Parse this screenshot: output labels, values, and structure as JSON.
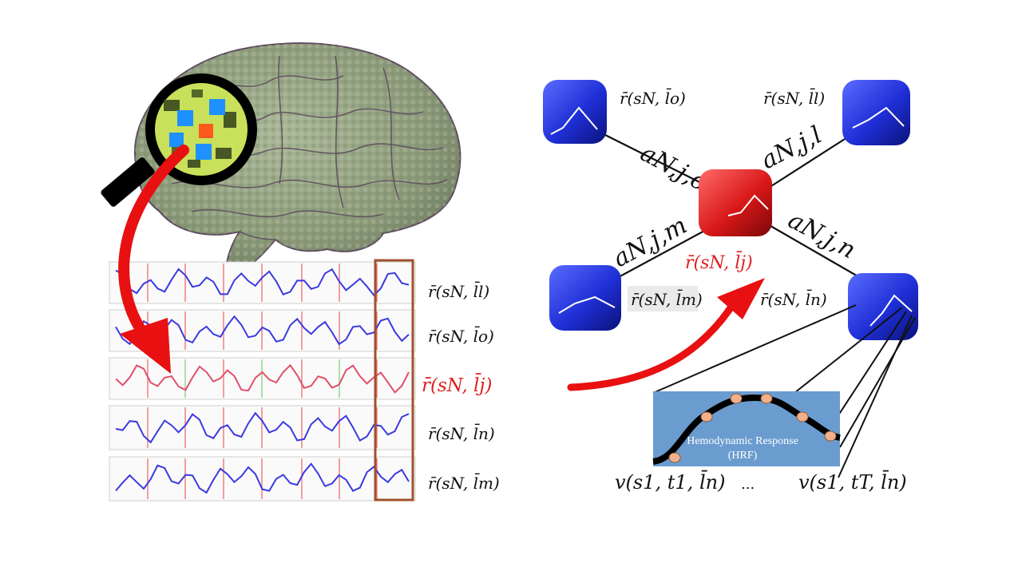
{
  "colors": {
    "node_blue": "#1f2fd6",
    "node_red": "#d81818",
    "trace_blue": "#3a3ae0",
    "trace_red": "#e0506a",
    "arrow_red": "#e81010",
    "highlight_box": "#a0522d",
    "hrf_bg": "#6a9ccf",
    "hrf_point": "#f2b08a",
    "brain": "#8a9a78"
  },
  "icons": {
    "magnifier": "magnifier-icon",
    "brain": "brain-icon"
  },
  "left": {
    "trace_labels": [
      "r̄(sN, l̄l)",
      "r̄(sN, l̄o)",
      "r̄(sN, l̄j)",
      "r̄(sN, l̄n)",
      "r̄(sN, l̄m)"
    ]
  },
  "right": {
    "node_labels": {
      "o": "r̄(sN, l̄o)",
      "l": "r̄(sN, l̄l)",
      "j": "r̄(sN, l̄j)",
      "m": "r̄(sN, l̄m)",
      "n": "r̄(sN, l̄n)"
    },
    "edge_labels": {
      "o": "aN,j,o",
      "l": "aN,j,l",
      "m": "aN,j,m",
      "n": "aN,j,n"
    },
    "hrf": {
      "title": "Hemodynamic Response",
      "subtitle": "(HRF)"
    },
    "bottom_labels": {
      "first": "v(s1, t1, l̄n)",
      "ellipsis": "...",
      "last": "v(s1, tT, l̄n)"
    }
  }
}
